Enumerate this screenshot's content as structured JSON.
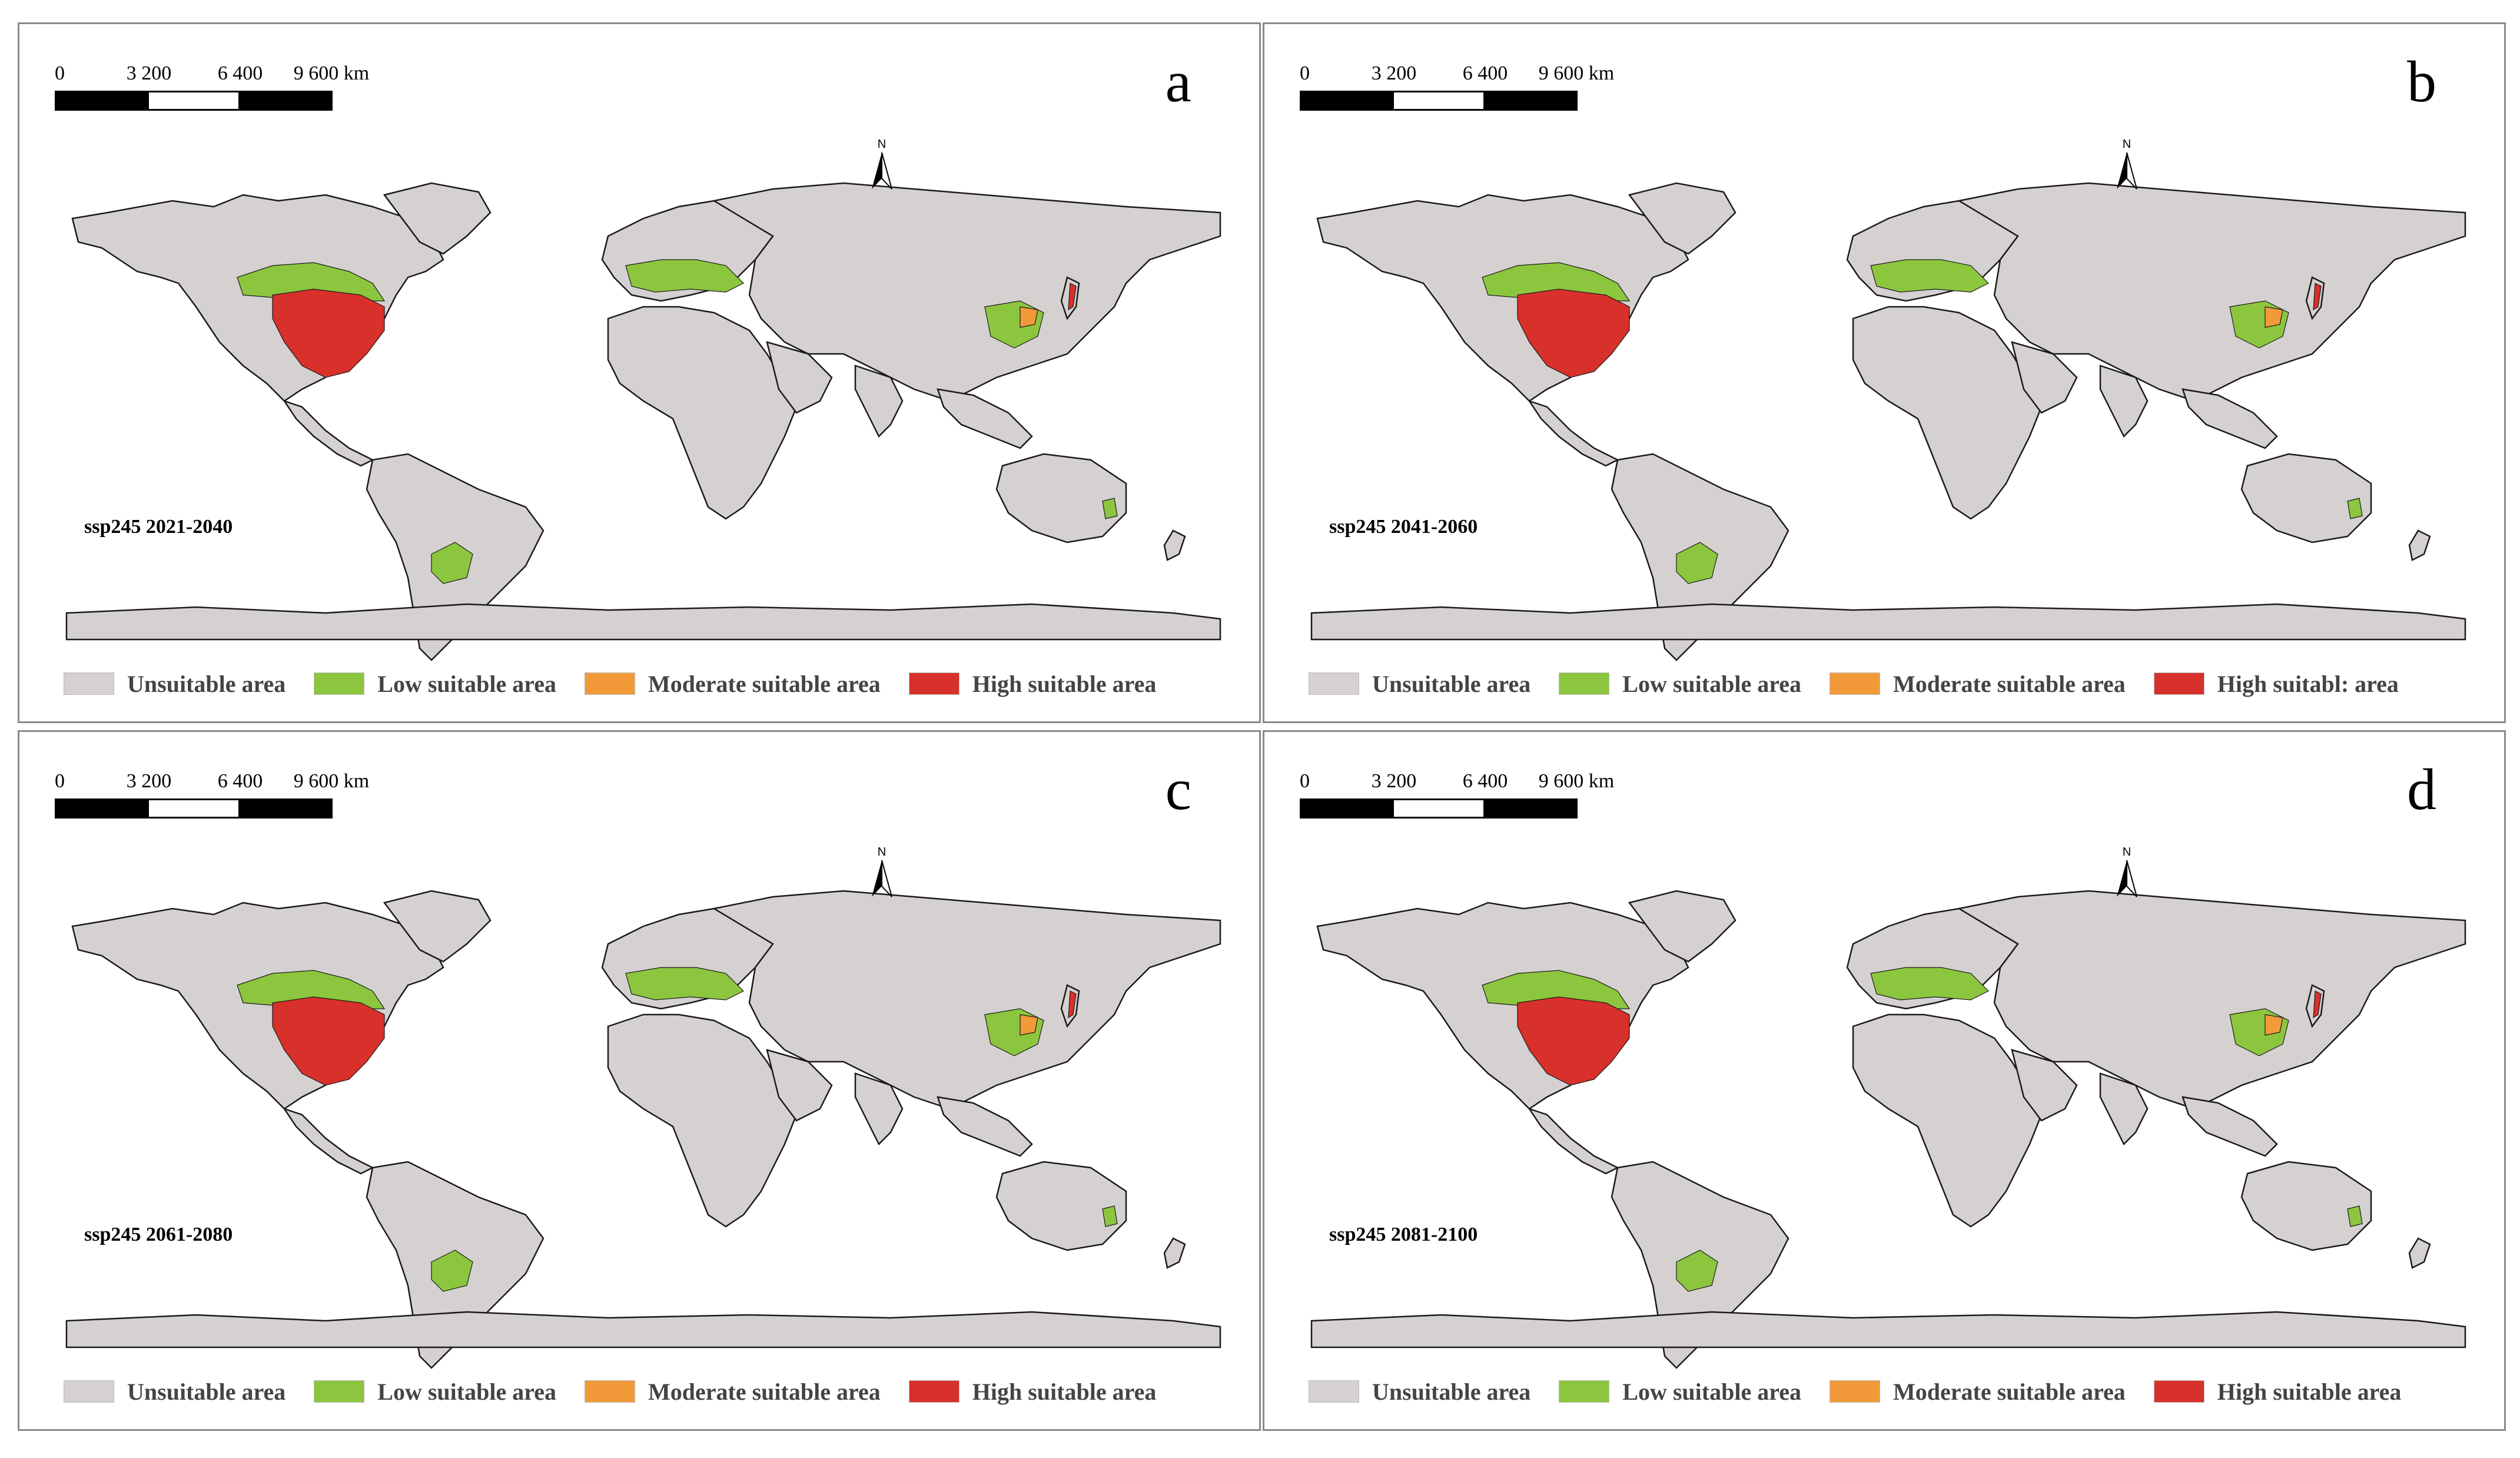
{
  "scale_ticks": [
    "0",
    "3 200",
    "6 400",
    "9 600 km"
  ],
  "north_label": "N",
  "colors": {
    "unsuitable": "#d4d1d0",
    "low": "#8cc63e",
    "moderate": "#f29a3a",
    "high": "#d8302a"
  },
  "panels": [
    {
      "letter": "a",
      "scenario": "ssp245  2021-2040",
      "legend": [
        "Unsuitable area",
        "Low suitable area",
        "Moderate suitable area",
        "High suitable area"
      ]
    },
    {
      "letter": "b",
      "scenario": "ssp245  2041-2060",
      "legend": [
        "Unsuitable area",
        "Low suitable area",
        "Moderate suitable area",
        "High suitabl: area"
      ]
    },
    {
      "letter": "c",
      "scenario": "ssp245  2061-2080",
      "legend": [
        "Unsuitable area",
        "Low suitable area",
        "Moderate suitable area",
        "High suitable area"
      ]
    },
    {
      "letter": "d",
      "scenario": "ssp245  2081-2100",
      "legend": [
        "Unsuitable area",
        "Low suitable area",
        "Moderate suitable area",
        "High suitable area"
      ]
    }
  ]
}
